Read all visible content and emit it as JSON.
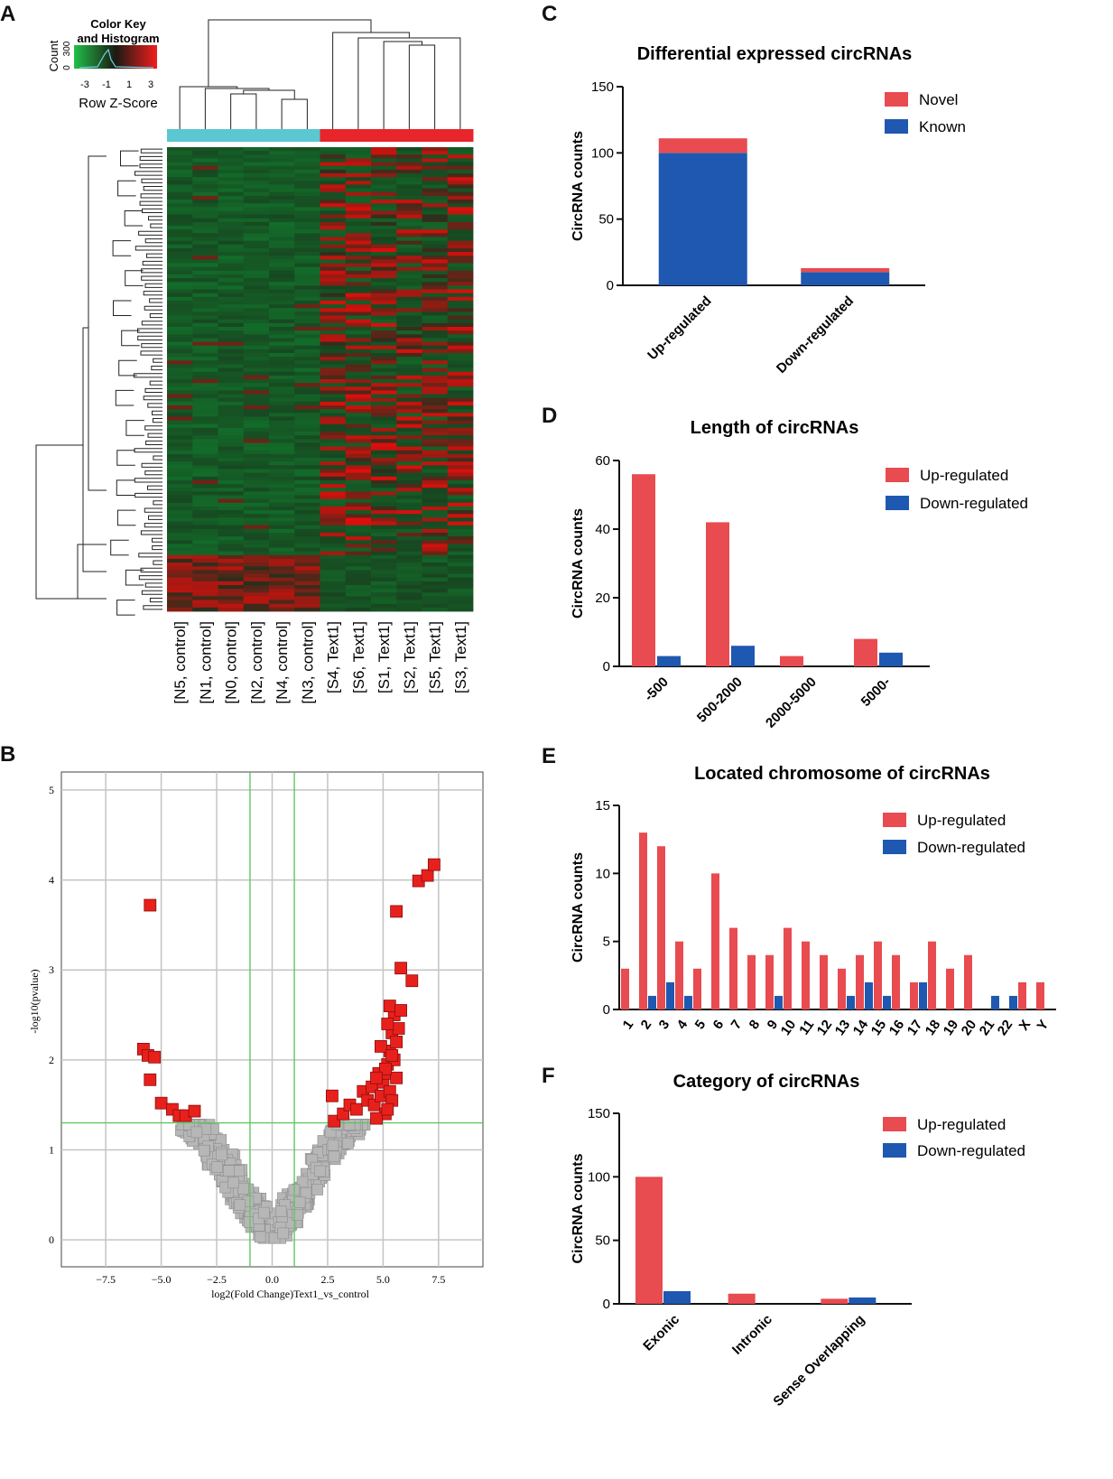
{
  "panel_letters": {
    "a": "A",
    "b": "B",
    "c": "C",
    "d": "D",
    "e": "E",
    "f": "F"
  },
  "colors": {
    "up": "#e84b50",
    "down": "#1f58b0",
    "sig": "#e8201c",
    "nonsig": "#b7b7b7",
    "threshold": "#5fc75f",
    "control_bar": "#5bc7d3",
    "test_bar": "#e8252a"
  },
  "chart_data": [
    {
      "id": "A",
      "type": "heatmap",
      "color_key": {
        "title": "Color Key",
        "subtitle": "and Histogram",
        "hist_label": "Count",
        "hist_ticks": [
          "0",
          "300"
        ],
        "ticks": [
          "-3",
          "-1",
          "1",
          "3"
        ],
        "xlabel": "Row Z-Score"
      },
      "columns": [
        "[N5, control]",
        "[N1, control]",
        "[N0, control]",
        "[N2, control]",
        "[N4, control]",
        "[N3, control]",
        "[S4, Text1]",
        "[S6, Text1]",
        "[S1, Text1]",
        "[S2, Text1]",
        "[S5, Text1]",
        "[S3, Text1]"
      ],
      "groups": [
        "control",
        "control",
        "control",
        "control",
        "control",
        "control",
        "Text1",
        "Text1",
        "Text1",
        "Text1",
        "Text1",
        "Text1"
      ],
      "row_count": 124
    },
    {
      "id": "B",
      "type": "scatter",
      "xlabel": "log2(Fold Change)Text1_vs_control",
      "ylabel": "-log10(pvalue)",
      "xlim": [
        -9.5,
        9.5
      ],
      "ylim": [
        -0.3,
        5.2
      ],
      "xticks": [
        -7.5,
        -5.0,
        -2.5,
        0.0,
        2.5,
        5.0,
        7.5
      ],
      "xtick_labels": [
        "−7.5",
        "−5.0",
        "−2.5",
        "0.0",
        "2.5",
        "5.0",
        "7.5"
      ],
      "yticks": [
        0,
        1,
        2,
        3,
        4,
        5
      ],
      "ytick_labels": [
        "0",
        "1",
        "2",
        "3",
        "4",
        "5"
      ],
      "thresholds": {
        "x": [
          -1,
          1
        ],
        "y": 1.3
      },
      "significant": [
        [
          -5.5,
          3.72
        ],
        [
          -5.8,
          2.12
        ],
        [
          -5.6,
          2.05
        ],
        [
          -5.3,
          2.03
        ],
        [
          -5.5,
          1.78
        ],
        [
          -5.0,
          1.52
        ],
        [
          -4.5,
          1.45
        ],
        [
          -4.2,
          1.38
        ],
        [
          -3.9,
          1.38
        ],
        [
          -3.5,
          1.43
        ],
        [
          2.7,
          1.6
        ],
        [
          2.8,
          1.32
        ],
        [
          3.2,
          1.4
        ],
        [
          3.5,
          1.5
        ],
        [
          3.8,
          1.45
        ],
        [
          4.1,
          1.65
        ],
        [
          4.3,
          1.55
        ],
        [
          4.5,
          1.7
        ],
        [
          4.6,
          1.5
        ],
        [
          4.8,
          1.85
        ],
        [
          4.9,
          1.6
        ],
        [
          5.0,
          1.75
        ],
        [
          5.1,
          1.4
        ],
        [
          4.7,
          1.35
        ],
        [
          5.2,
          1.95
        ],
        [
          5.3,
          2.1
        ],
        [
          5.4,
          2.3
        ],
        [
          5.5,
          2.5
        ],
        [
          5.3,
          1.65
        ],
        [
          5.1,
          1.85
        ],
        [
          4.9,
          2.15
        ],
        [
          5.5,
          2.0
        ],
        [
          5.3,
          2.6
        ],
        [
          5.4,
          1.55
        ],
        [
          5.2,
          1.45
        ],
        [
          5.6,
          2.2
        ],
        [
          5.7,
          2.35
        ],
        [
          5.8,
          2.55
        ],
        [
          5.6,
          1.8
        ],
        [
          5.4,
          2.05
        ],
        [
          5.2,
          2.4
        ],
        [
          5.1,
          1.9
        ],
        [
          4.7,
          1.8
        ],
        [
          5.6,
          3.65
        ],
        [
          5.8,
          3.02
        ],
        [
          6.3,
          2.88
        ],
        [
          6.6,
          3.99
        ],
        [
          7.0,
          4.05
        ],
        [
          7.3,
          4.17
        ]
      ],
      "nonsig_count": 420
    },
    {
      "id": "C",
      "type": "bar",
      "title": "Differential expressed circRNAs",
      "ylabel": "CircRNA counts",
      "categories": [
        "Up-regulated",
        "Down-regulated"
      ],
      "stacked": true,
      "series": [
        {
          "name": "Known",
          "values": [
            100,
            10
          ]
        },
        {
          "name": "Novel",
          "values": [
            11,
            3
          ]
        }
      ],
      "legend": [
        "Novel",
        "Known"
      ],
      "ylim": [
        0,
        150
      ],
      "yticks": [
        0,
        50,
        100,
        150
      ]
    },
    {
      "id": "D",
      "type": "bar",
      "title": "Length of circRNAs",
      "ylabel": "CircRNA counts",
      "categories": [
        "-500",
        "500-2000",
        "2000-5000",
        "5000-"
      ],
      "series": [
        {
          "name": "Up-regulated",
          "values": [
            56,
            42,
            3,
            8
          ]
        },
        {
          "name": "Down-regulated",
          "values": [
            3,
            6,
            0,
            4
          ]
        }
      ],
      "ylim": [
        0,
        60
      ],
      "yticks": [
        0,
        20,
        40,
        60
      ]
    },
    {
      "id": "E",
      "type": "bar",
      "title": "Located chromosome of circRNAs",
      "ylabel": "CircRNA counts",
      "categories": [
        "1",
        "2",
        "3",
        "4",
        "5",
        "6",
        "7",
        "8",
        "9",
        "10",
        "11",
        "12",
        "13",
        "14",
        "15",
        "16",
        "17",
        "18",
        "19",
        "20",
        "21",
        "22",
        "X",
        "Y"
      ],
      "series": [
        {
          "name": "Up-regulated",
          "values": [
            3,
            13,
            12,
            5,
            3,
            10,
            6,
            4,
            4,
            6,
            5,
            4,
            3,
            4,
            5,
            4,
            2,
            5,
            3,
            4,
            0,
            0,
            2,
            2
          ]
        },
        {
          "name": "Down-regulated",
          "values": [
            0,
            1,
            2,
            1,
            0,
            0,
            0,
            0,
            1,
            0,
            0,
            0,
            1,
            2,
            1,
            0,
            2,
            0,
            0,
            0,
            1,
            1,
            0,
            0
          ]
        }
      ],
      "ylim": [
        0,
        15
      ],
      "yticks": [
        0,
        5,
        10,
        15
      ]
    },
    {
      "id": "F",
      "type": "bar",
      "title": "Category of circRNAs",
      "ylabel": "CircRNA counts",
      "categories": [
        "Exonic",
        "Intronic",
        "Sense Overlapping"
      ],
      "series": [
        {
          "name": "Up-regulated",
          "values": [
            100,
            8,
            4
          ]
        },
        {
          "name": "Down-regulated",
          "values": [
            10,
            0,
            5
          ]
        }
      ],
      "ylim": [
        0,
        150
      ],
      "yticks": [
        0,
        50,
        100,
        150
      ]
    }
  ]
}
